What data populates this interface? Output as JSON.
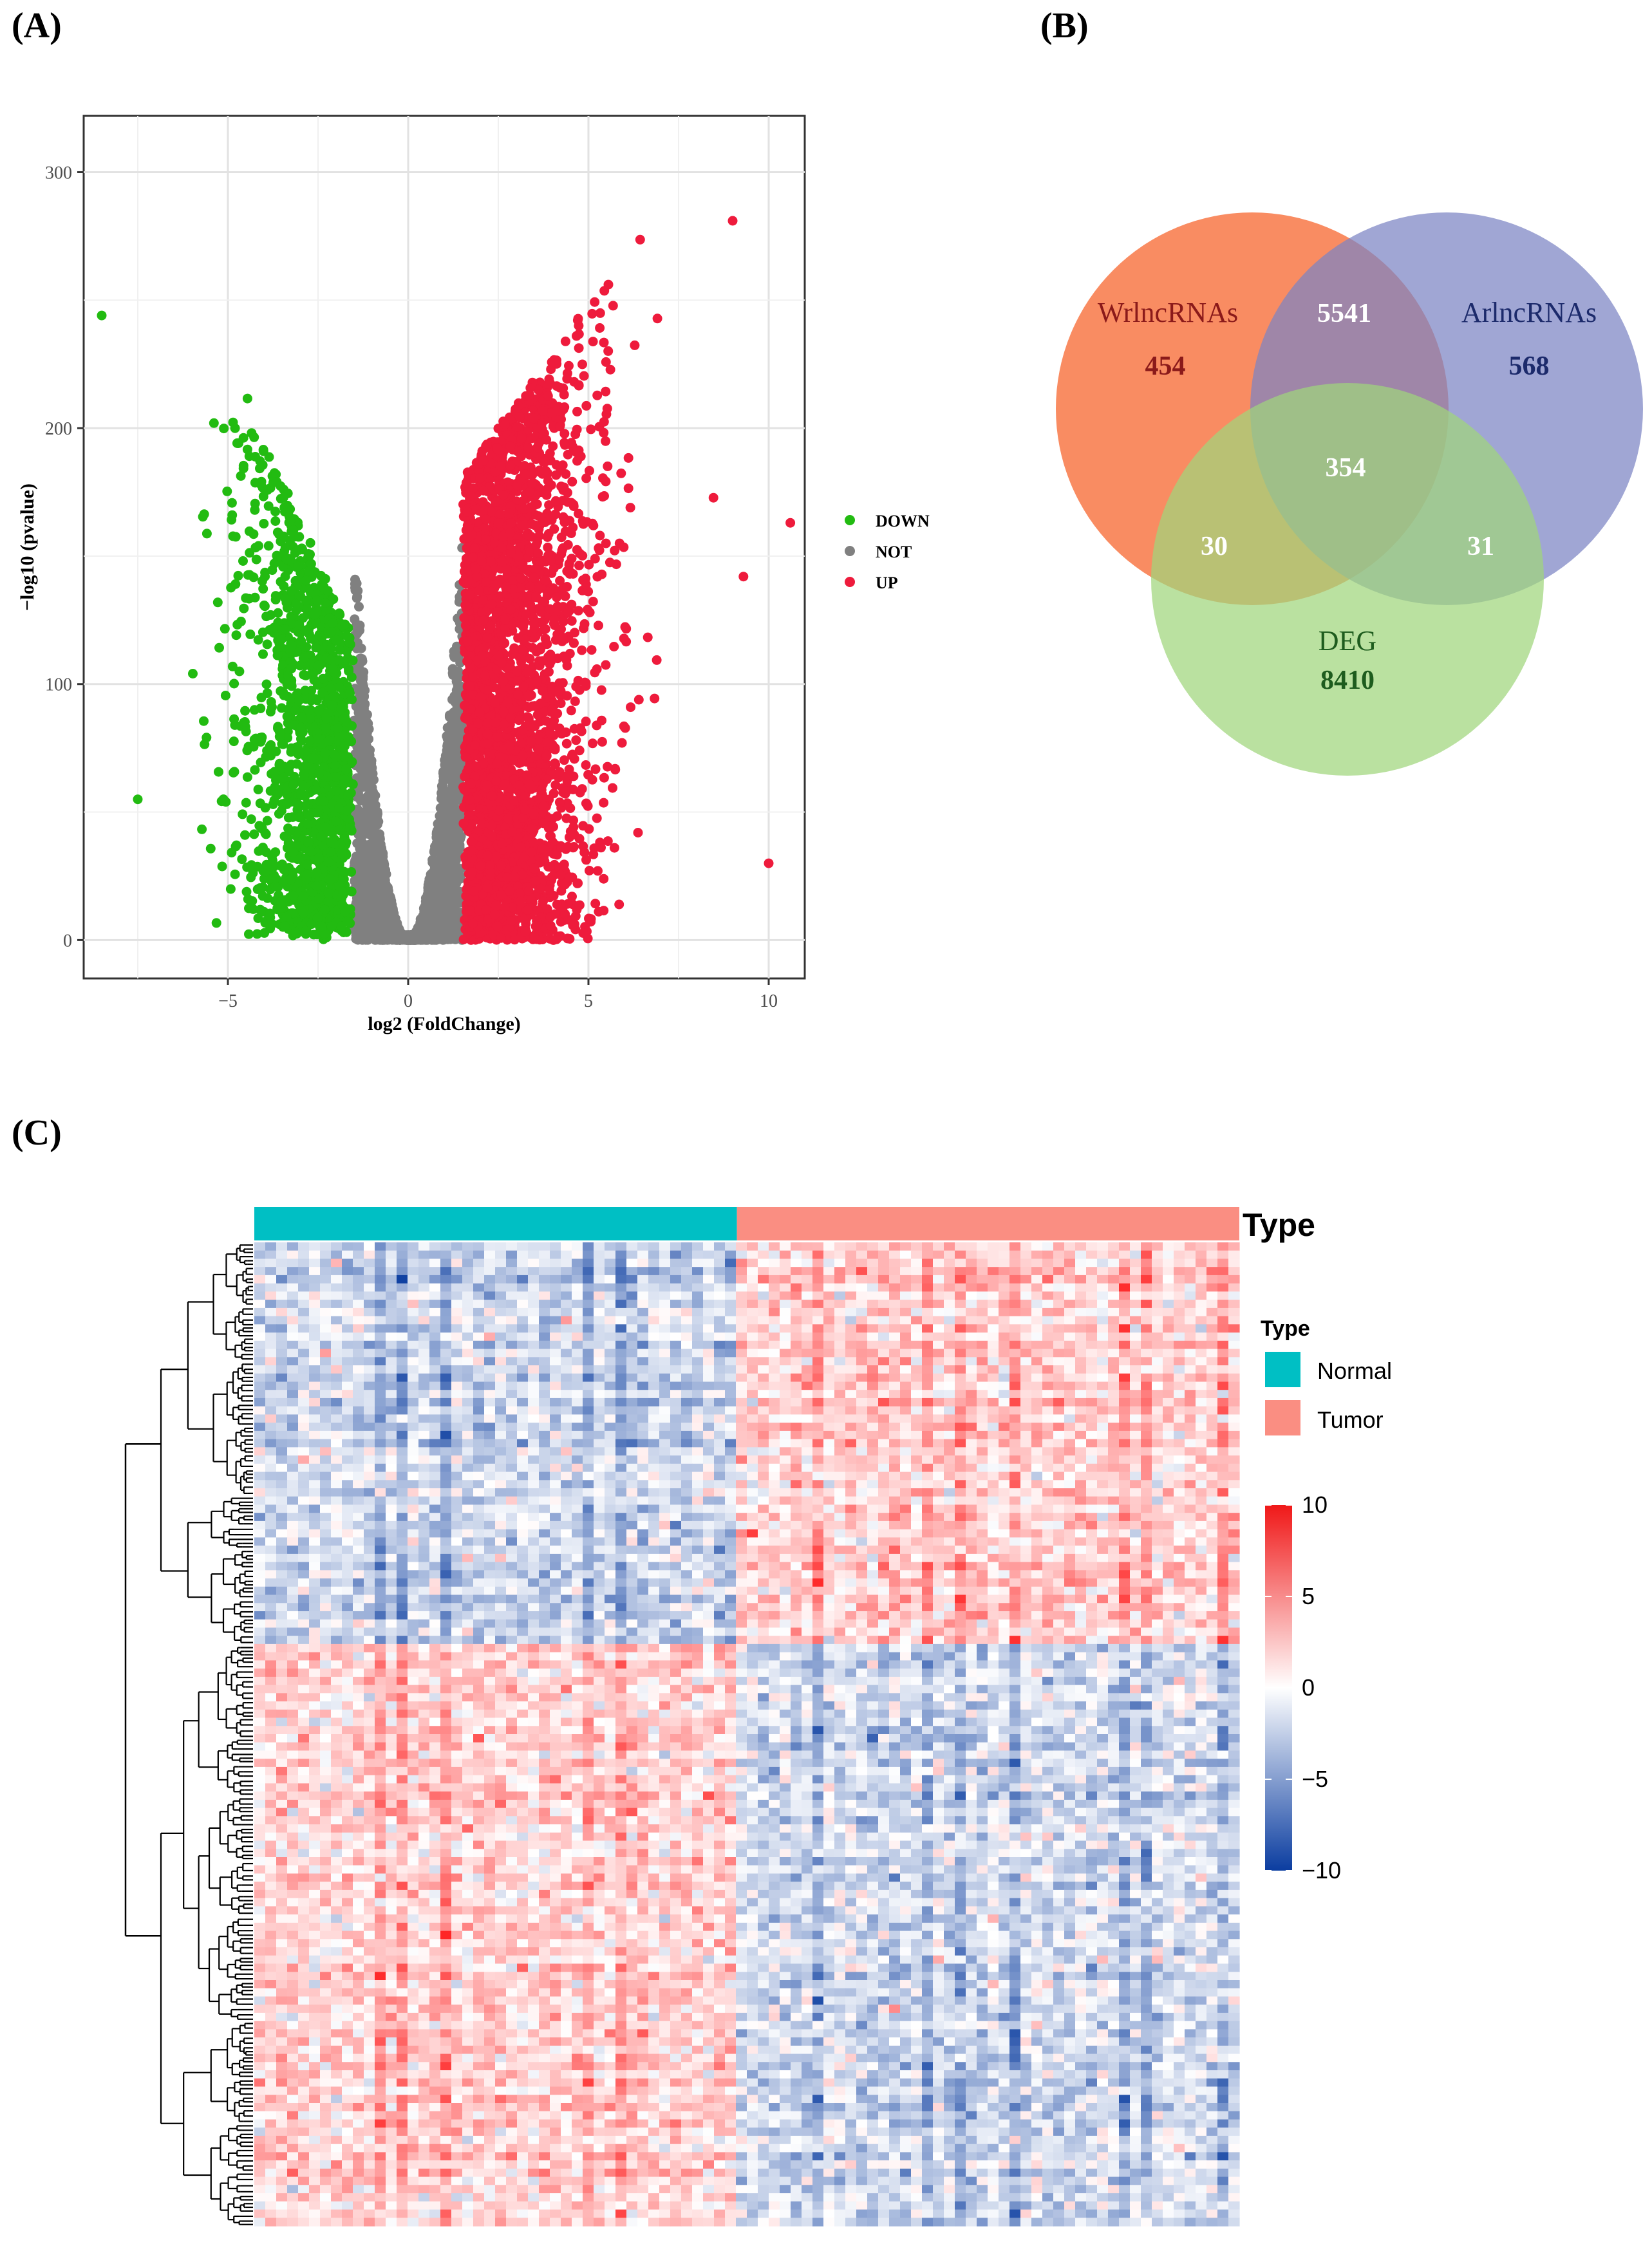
{
  "panels": {
    "a_label": "(A)",
    "b_label": "(B)",
    "c_label": "(C)"
  },
  "chart_data": [
    {
      "type": "scatter",
      "title": "",
      "xlabel": "log2 (FoldChange)",
      "ylabel": "−log10 (pvalue)",
      "xlim": [
        -9,
        11
      ],
      "ylim": [
        -15,
        322
      ],
      "x_ticks": [
        -5,
        0,
        5,
        10
      ],
      "x_tick_labels": [
        "−5",
        "0",
        "5",
        "10"
      ],
      "y_ticks": [
        0,
        100,
        200,
        300
      ],
      "y_tick_labels": [
        "0",
        "100",
        "200",
        "300"
      ],
      "grid": true,
      "legend": {
        "position": "right",
        "entries": [
          {
            "label": "DOWN",
            "color": "#22bb11"
          },
          {
            "label": "NOT",
            "color": "#808080"
          },
          {
            "label": "UP",
            "color": "#ee1b3c"
          }
        ]
      },
      "thresholds": {
        "log2fc": 1.5
      },
      "series": [
        {
          "name": "DOWN",
          "color": "#22bb11",
          "n": 1500,
          "x_range": [
            -8.5,
            -1.5
          ]
        },
        {
          "name": "NOT",
          "color": "#808080",
          "n": 2200,
          "x_range": [
            -1.5,
            1.5
          ]
        },
        {
          "name": "UP",
          "color": "#ee1b3c",
          "n": 3000,
          "x_range": [
            1.5,
            10.6
          ]
        }
      ],
      "outliers": [
        {
          "x": 10.6,
          "y": 163
        },
        {
          "x": 10.0,
          "y": 30
        },
        {
          "x": 9.3,
          "y": 142
        },
        {
          "x": -7.5,
          "y": 55
        },
        {
          "x": -8.5,
          "y": 244
        },
        {
          "x": 9.0,
          "y": 281
        }
      ]
    },
    {
      "type": "venn",
      "sets": [
        {
          "name": "WrlncRNAs",
          "only": "454",
          "color": "#f9865a",
          "text_color": "#8b1a1a"
        },
        {
          "name": "ArlncRNAs",
          "only": "568",
          "color": "#7b84c4",
          "text_color": "#1c2a6b"
        },
        {
          "name": "DEG",
          "only": "8410",
          "color": "#9fd67b",
          "text_color": "#1e5c1e"
        }
      ],
      "intersections": [
        {
          "sets": [
            "WrlncRNAs",
            "ArlncRNAs"
          ],
          "value": "5541"
        },
        {
          "sets": [
            "WrlncRNAs",
            "DEG"
          ],
          "value": "30"
        },
        {
          "sets": [
            "ArlncRNAs",
            "DEG"
          ],
          "value": "31"
        },
        {
          "sets": [
            "WrlncRNAs",
            "ArlncRNAs",
            "DEG"
          ],
          "value": "354"
        }
      ]
    },
    {
      "type": "heatmap",
      "annotation_title": "Type",
      "groups": [
        {
          "name": "Normal",
          "color": "#00bfc4",
          "fraction": 0.49
        },
        {
          "name": "Tumor",
          "color": "#fa8e82",
          "fraction": 0.51
        }
      ],
      "row_split_fraction": 0.41,
      "legend": {
        "title": "Type",
        "entries": [
          {
            "label": "Normal",
            "color": "#00bfc4"
          },
          {
            "label": "Tumor",
            "color": "#fa8e82"
          }
        ]
      },
      "colorbar": {
        "min": -10,
        "max": 10,
        "ticks": [
          10,
          5,
          0,
          -5,
          -10
        ],
        "tick_labels": [
          "10",
          "5",
          "0",
          "−5",
          "−10"
        ],
        "colors": [
          "#0b3da0",
          "#ffffff",
          "#f01818"
        ]
      }
    }
  ]
}
